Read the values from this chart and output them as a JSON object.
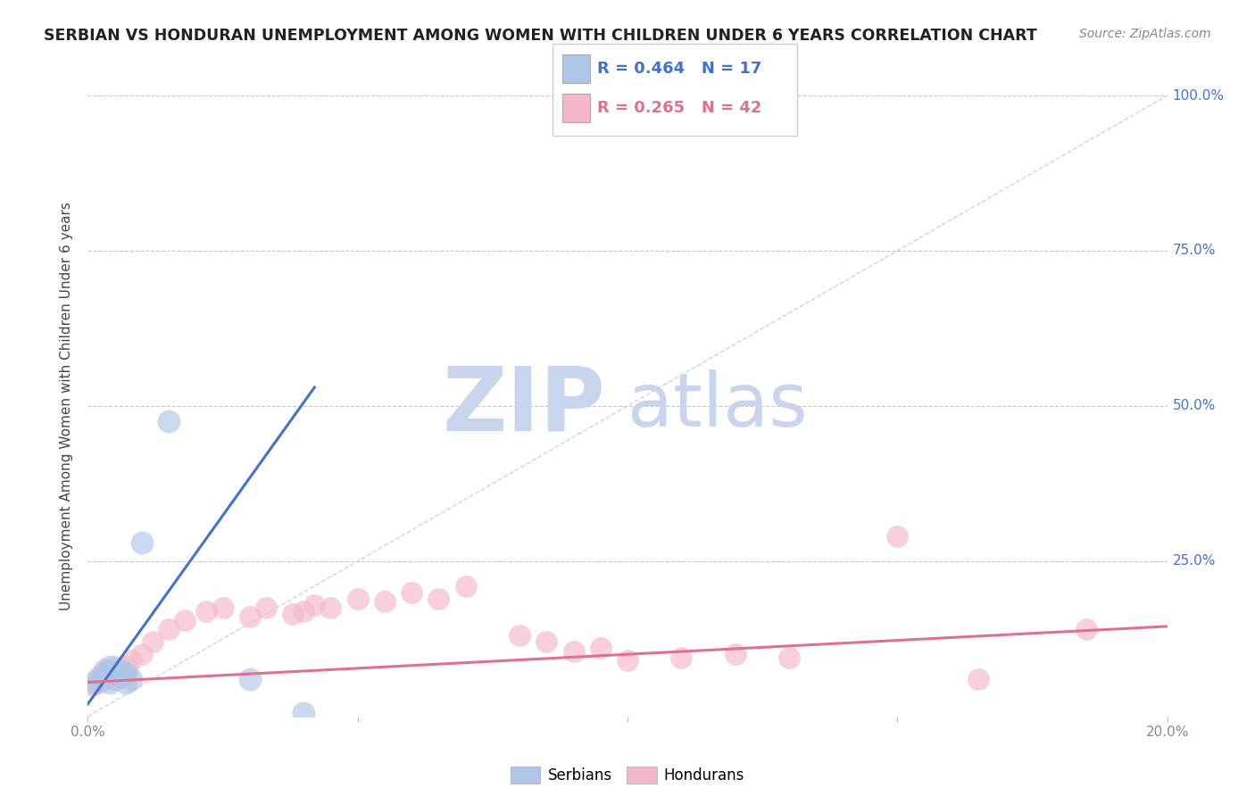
{
  "title": "SERBIAN VS HONDURAN UNEMPLOYMENT AMONG WOMEN WITH CHILDREN UNDER 6 YEARS CORRELATION CHART",
  "source": "Source: ZipAtlas.com",
  "ylabel": "Unemployment Among Women with Children Under 6 years",
  "xlim": [
    0.0,
    0.2
  ],
  "ylim": [
    0.0,
    1.0
  ],
  "legend_R1": "R = 0.464",
  "legend_N1": "N = 17",
  "legend_R2": "R = 0.265",
  "legend_N2": "N = 42",
  "serbian_color": "#aec6e8",
  "honduran_color": "#f5b8c8",
  "serbian_line_color": "#4472c4",
  "honduran_line_color": "#e07090",
  "diagonal_color": "#c5cfe8",
  "watermark_zip": "ZIP",
  "watermark_atlas": "atlas",
  "watermark_color_zip": "#c8d5ed",
  "watermark_color_atlas": "#c8d5ed",
  "background_color": "#ffffff",
  "grid_color": "#c8c8c8",
  "tick_color": "#888888",
  "title_color": "#222222",
  "source_color": "#888888",
  "raxis_color": "#4472c4",
  "serbian_x": [
    0.001,
    0.002,
    0.003,
    0.003,
    0.004,
    0.004,
    0.005,
    0.005,
    0.006,
    0.006,
    0.007,
    0.007,
    0.008,
    0.01,
    0.015,
    0.03,
    0.04
  ],
  "serbian_y": [
    0.055,
    0.06,
    0.065,
    0.075,
    0.055,
    0.08,
    0.06,
    0.07,
    0.065,
    0.075,
    0.07,
    0.055,
    0.06,
    0.28,
    0.475,
    0.06,
    0.005
  ],
  "honduran_x": [
    0.001,
    0.002,
    0.002,
    0.003,
    0.003,
    0.004,
    0.004,
    0.005,
    0.005,
    0.006,
    0.006,
    0.007,
    0.007,
    0.008,
    0.01,
    0.012,
    0.015,
    0.018,
    0.022,
    0.025,
    0.03,
    0.033,
    0.038,
    0.04,
    0.042,
    0.045,
    0.05,
    0.055,
    0.06,
    0.065,
    0.07,
    0.08,
    0.085,
    0.09,
    0.095,
    0.1,
    0.11,
    0.12,
    0.13,
    0.15,
    0.165,
    0.185
  ],
  "honduran_y": [
    0.05,
    0.055,
    0.065,
    0.06,
    0.07,
    0.065,
    0.075,
    0.06,
    0.08,
    0.07,
    0.075,
    0.065,
    0.08,
    0.09,
    0.1,
    0.12,
    0.14,
    0.155,
    0.17,
    0.175,
    0.16,
    0.175,
    0.165,
    0.17,
    0.18,
    0.175,
    0.19,
    0.185,
    0.2,
    0.19,
    0.21,
    0.13,
    0.12,
    0.105,
    0.11,
    0.09,
    0.095,
    0.1,
    0.095,
    0.29,
    0.06,
    0.14
  ],
  "serbian_line_x": [
    0.0,
    0.042
  ],
  "serbian_line_y": [
    0.02,
    0.53
  ],
  "honduran_line_x": [
    0.0,
    0.2
  ],
  "honduran_line_y": [
    0.055,
    0.145
  ]
}
